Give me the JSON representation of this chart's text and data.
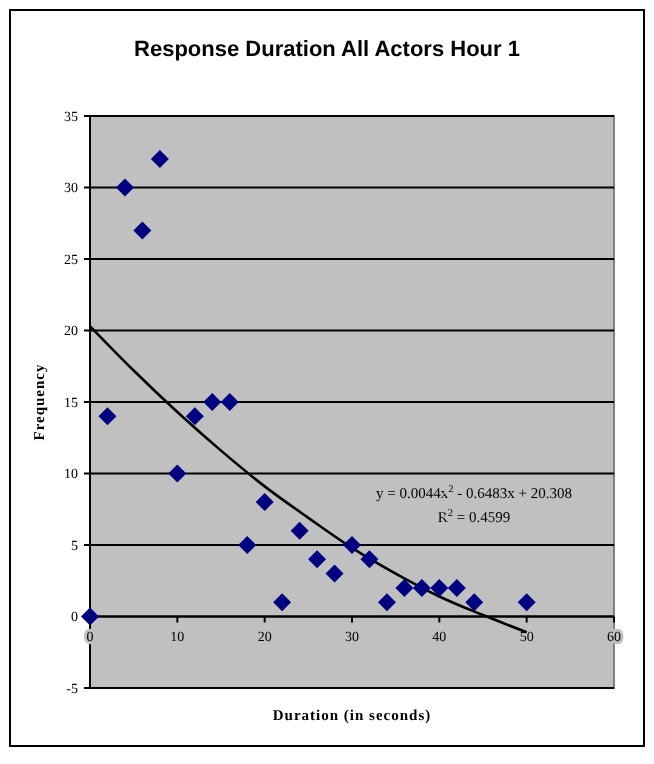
{
  "chart_data": {
    "type": "scatter",
    "title": "Response Duration All Actors Hour 1",
    "xlabel": "Duration (in seconds)",
    "ylabel": "Frequency",
    "xlim": [
      0,
      60
    ],
    "xticks": [
      0,
      10,
      20,
      30,
      40,
      50,
      60
    ],
    "ylim": [
      -5,
      35
    ],
    "yticks": [
      -5,
      0,
      5,
      10,
      15,
      20,
      25,
      30,
      35
    ],
    "grid": "y",
    "marker": "diamond",
    "series": [
      {
        "color": "#000080",
        "x": [
          0,
          2,
          4,
          6,
          8,
          10,
          12,
          14,
          16,
          18,
          20,
          22,
          24,
          26,
          28,
          30,
          32,
          34,
          36,
          38,
          40,
          42,
          44,
          50
        ],
        "values": [
          0,
          14,
          30,
          27,
          32,
          10,
          14,
          15,
          15,
          5,
          8,
          1,
          6,
          4,
          3,
          5,
          4,
          1,
          2,
          2,
          2,
          2,
          1,
          1
        ]
      },
      {
        "type": "line",
        "marker": "none",
        "color": "#000000",
        "x": [
          0,
          5,
          10,
          15,
          20,
          25,
          30,
          35,
          40,
          45,
          50
        ],
        "values": [
          20.3,
          17.2,
          14.3,
          11.6,
          9.1,
          6.9,
          4.8,
          3.0,
          1.4,
          0.1,
          -1.1
        ]
      }
    ],
    "annotations": [
      "y = 0.0044x$^{2}$ - 0.6483x + 20.308",
      "R$^{2}$ = 0.4599"
    ]
  }
}
